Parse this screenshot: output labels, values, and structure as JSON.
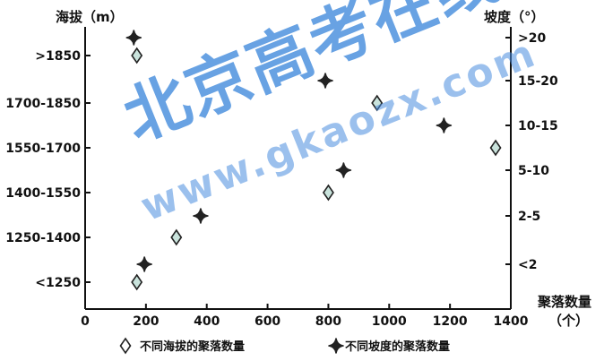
{
  "watermark": {
    "main": "北京高考在线",
    "sub": "www.gkaozx.com"
  },
  "chart_data": {
    "type": "scatter",
    "x": {
      "label": "聚落数量",
      "unit": "（个）",
      "ticks": [
        0,
        200,
        400,
        600,
        800,
        1000,
        1200,
        1400
      ],
      "range": [
        0,
        1400
      ]
    },
    "y_left": {
      "label": "海拔（m）",
      "categories": [
        "<1250",
        "1250-1400",
        "1400-1550",
        "1550-1700",
        "1700-1850",
        ">1850"
      ]
    },
    "y_right": {
      "label": "坡度（°）",
      "categories": [
        "<2",
        "2-5",
        "5-10",
        "10-15",
        "15-20",
        ">20"
      ]
    },
    "series": [
      {
        "name": "不同海拔的聚落数量",
        "marker": "diamond",
        "color": "#c9e3dc",
        "axis": "left",
        "points": [
          {
            "x": 170,
            "y": ">1850"
          },
          {
            "x": 960,
            "y": "1700-1850"
          },
          {
            "x": 1350,
            "y": "1550-1700"
          },
          {
            "x": 800,
            "y": "1400-1550"
          },
          {
            "x": 300,
            "y": "1250-1400"
          },
          {
            "x": 170,
            "y": "<1250"
          }
        ]
      },
      {
        "name": "不同坡度的聚落数量",
        "marker": "cross",
        "color": "#222222",
        "axis": "right",
        "points": [
          {
            "x": 160,
            "y": ">20"
          },
          {
            "x": 790,
            "y": "15-20"
          },
          {
            "x": 1180,
            "y": "10-15"
          },
          {
            "x": 850,
            "y": "5-10"
          },
          {
            "x": 380,
            "y": "2-5"
          },
          {
            "x": 195,
            "y": "<2"
          }
        ]
      }
    ],
    "legend": {
      "placement": "bottom",
      "items": [
        {
          "marker": "diamond",
          "label": "不同海拔的聚落数量"
        },
        {
          "marker": "cross",
          "label": "不同坡度的聚落数量"
        }
      ]
    }
  }
}
